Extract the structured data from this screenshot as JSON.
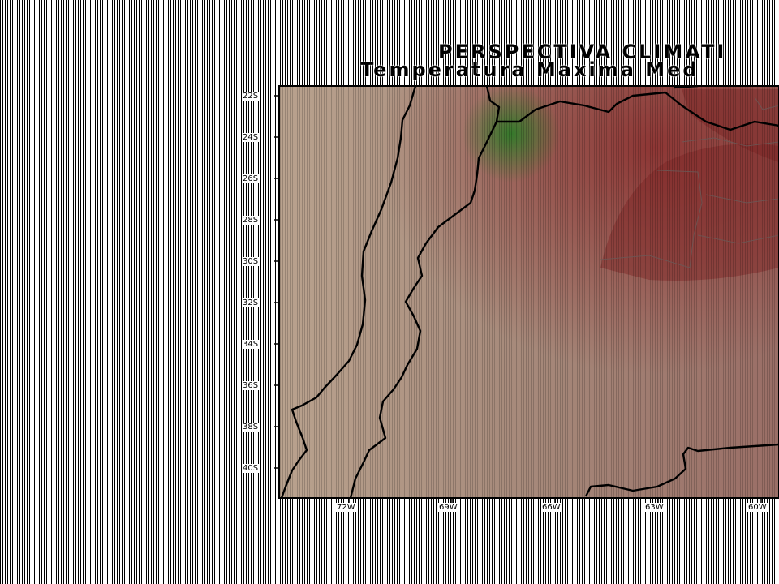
{
  "title": {
    "line1": "PERSPECTIVA CLIMATI",
    "line2": "Temperatura Maxima Med"
  },
  "map": {
    "latitude_labels": [
      "22S",
      "24S",
      "26S",
      "28S",
      "30S",
      "32S",
      "34S",
      "36S",
      "38S",
      "40S"
    ],
    "longitude_labels": [
      "72W",
      "69W",
      "66W",
      "63W",
      "60W"
    ],
    "colors": {
      "base": "#b29a86",
      "warm": "#8a2a2a",
      "cool": "#2f7a28",
      "boundary": "#000000",
      "frame": "#000000"
    }
  }
}
